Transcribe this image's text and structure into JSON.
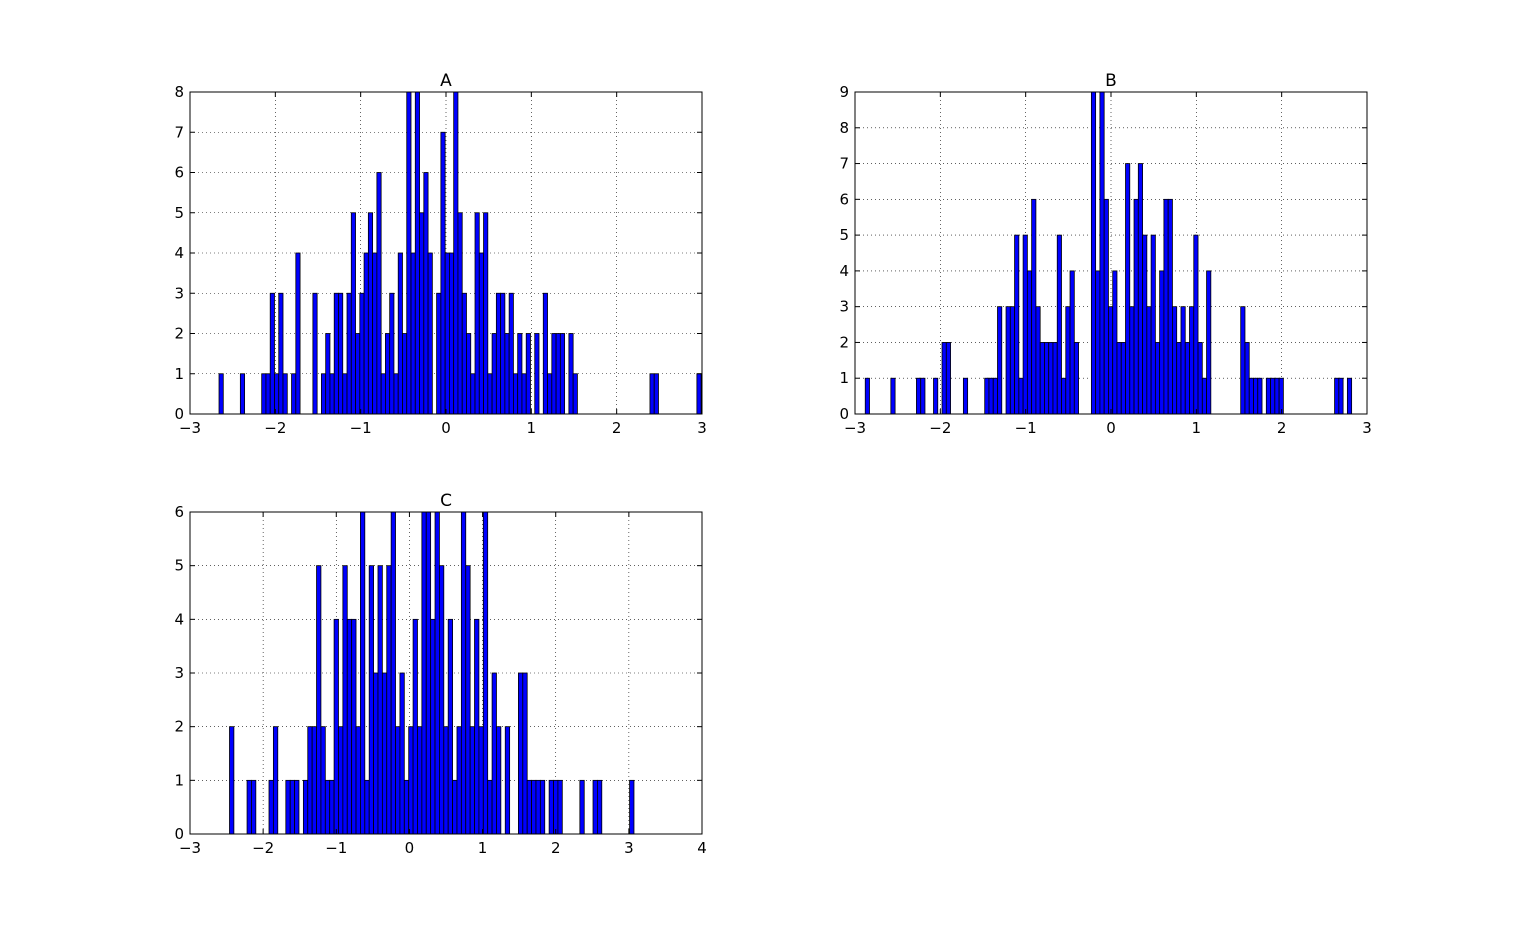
{
  "chart_data": [
    {
      "type": "bar",
      "title": "A",
      "xlim": [
        -3,
        3
      ],
      "ylim": [
        0,
        8
      ],
      "xticks": [
        "−3",
        "−2",
        "−1",
        "0",
        "1",
        "2",
        "3"
      ],
      "yticks": [
        "0",
        "1",
        "2",
        "3",
        "4",
        "5",
        "6",
        "7",
        "8"
      ],
      "grid": true,
      "bar_color": "#0000ff",
      "bins": [
        [
          -2.66,
          1
        ],
        [
          -2.41,
          1
        ],
        [
          -2.16,
          1
        ],
        [
          -2.11,
          1
        ],
        [
          -2.06,
          3
        ],
        [
          -2.01,
          1
        ],
        [
          -1.96,
          3
        ],
        [
          -1.91,
          1
        ],
        [
          -1.81,
          1
        ],
        [
          -1.76,
          4
        ],
        [
          -1.56,
          3
        ],
        [
          -1.46,
          1
        ],
        [
          -1.41,
          2
        ],
        [
          -1.36,
          1
        ],
        [
          -1.31,
          3
        ],
        [
          -1.26,
          3
        ],
        [
          -1.21,
          1
        ],
        [
          -1.16,
          3
        ],
        [
          -1.11,
          5
        ],
        [
          -1.06,
          2
        ],
        [
          -1.01,
          3
        ],
        [
          -0.96,
          4
        ],
        [
          -0.91,
          5
        ],
        [
          -0.86,
          4
        ],
        [
          -0.81,
          6
        ],
        [
          -0.76,
          1
        ],
        [
          -0.71,
          2
        ],
        [
          -0.66,
          3
        ],
        [
          -0.61,
          1
        ],
        [
          -0.56,
          4
        ],
        [
          -0.51,
          2
        ],
        [
          -0.46,
          8
        ],
        [
          -0.41,
          4
        ],
        [
          -0.36,
          8
        ],
        [
          -0.31,
          5
        ],
        [
          -0.26,
          6
        ],
        [
          -0.21,
          4
        ],
        [
          -0.11,
          3
        ],
        [
          -0.06,
          7
        ],
        [
          -0.01,
          4
        ],
        [
          0.04,
          4
        ],
        [
          0.09,
          8
        ],
        [
          0.14,
          5
        ],
        [
          0.19,
          3
        ],
        [
          0.24,
          2
        ],
        [
          0.29,
          1
        ],
        [
          0.34,
          5
        ],
        [
          0.39,
          4
        ],
        [
          0.44,
          5
        ],
        [
          0.49,
          1
        ],
        [
          0.54,
          2
        ],
        [
          0.59,
          3
        ],
        [
          0.64,
          3
        ],
        [
          0.69,
          2
        ],
        [
          0.74,
          3
        ],
        [
          0.79,
          1
        ],
        [
          0.84,
          2
        ],
        [
          0.89,
          1
        ],
        [
          0.94,
          2
        ],
        [
          1.04,
          2
        ],
        [
          1.14,
          3
        ],
        [
          1.19,
          1
        ],
        [
          1.24,
          2
        ],
        [
          1.29,
          2
        ],
        [
          1.34,
          2
        ],
        [
          1.44,
          2
        ],
        [
          1.49,
          1
        ],
        [
          2.39,
          1
        ],
        [
          2.44,
          1
        ],
        [
          2.94,
          1
        ]
      ],
      "bin_width": 0.05
    },
    {
      "type": "bar",
      "title": "B",
      "xlim": [
        -3,
        3
      ],
      "ylim": [
        0,
        9
      ],
      "xticks": [
        "−3",
        "−2",
        "−1",
        "0",
        "1",
        "2",
        "3"
      ],
      "yticks": [
        "0",
        "1",
        "2",
        "3",
        "4",
        "5",
        "6",
        "7",
        "8",
        "9"
      ],
      "grid": true,
      "bar_color": "#0000ff",
      "bins": [
        [
          -2.88,
          1
        ],
        [
          -2.58,
          1
        ],
        [
          -2.28,
          1
        ],
        [
          -2.23,
          1
        ],
        [
          -2.08,
          1
        ],
        [
          -1.98,
          2
        ],
        [
          -1.93,
          2
        ],
        [
          -1.73,
          1
        ],
        [
          -1.48,
          1
        ],
        [
          -1.43,
          1
        ],
        [
          -1.38,
          1
        ],
        [
          -1.33,
          3
        ],
        [
          -1.23,
          3
        ],
        [
          -1.18,
          3
        ],
        [
          -1.13,
          5
        ],
        [
          -1.08,
          1
        ],
        [
          -1.03,
          5
        ],
        [
          -0.98,
          4
        ],
        [
          -0.93,
          6
        ],
        [
          -0.88,
          3
        ],
        [
          -0.83,
          2
        ],
        [
          -0.78,
          2
        ],
        [
          -0.73,
          2
        ],
        [
          -0.68,
          2
        ],
        [
          -0.63,
          5
        ],
        [
          -0.58,
          1
        ],
        [
          -0.53,
          3
        ],
        [
          -0.48,
          4
        ],
        [
          -0.43,
          2
        ],
        [
          -0.23,
          9
        ],
        [
          -0.18,
          4
        ],
        [
          -0.13,
          9
        ],
        [
          -0.08,
          6
        ],
        [
          -0.03,
          3
        ],
        [
          0.02,
          4
        ],
        [
          0.07,
          2
        ],
        [
          0.12,
          2
        ],
        [
          0.17,
          7
        ],
        [
          0.22,
          3
        ],
        [
          0.27,
          6
        ],
        [
          0.32,
          7
        ],
        [
          0.37,
          5
        ],
        [
          0.42,
          3
        ],
        [
          0.47,
          5
        ],
        [
          0.52,
          2
        ],
        [
          0.57,
          4
        ],
        [
          0.62,
          6
        ],
        [
          0.67,
          6
        ],
        [
          0.72,
          3
        ],
        [
          0.77,
          2
        ],
        [
          0.82,
          3
        ],
        [
          0.87,
          2
        ],
        [
          0.92,
          3
        ],
        [
          0.97,
          5
        ],
        [
          1.02,
          2
        ],
        [
          1.07,
          1
        ],
        [
          1.12,
          4
        ],
        [
          1.52,
          3
        ],
        [
          1.57,
          2
        ],
        [
          1.62,
          1
        ],
        [
          1.67,
          1
        ],
        [
          1.72,
          1
        ],
        [
          1.82,
          1
        ],
        [
          1.87,
          1
        ],
        [
          1.92,
          1
        ],
        [
          1.97,
          1
        ],
        [
          2.62,
          1
        ],
        [
          2.67,
          1
        ],
        [
          2.77,
          1
        ]
      ],
      "bin_width": 0.05
    },
    {
      "type": "bar",
      "title": "C",
      "xlim": [
        -3,
        4
      ],
      "ylim": [
        0,
        6
      ],
      "xticks": [
        "−3",
        "−2",
        "−1",
        "0",
        "1",
        "2",
        "3",
        "4"
      ],
      "yticks": [
        "0",
        "1",
        "2",
        "3",
        "4",
        "5",
        "6"
      ],
      "grid": true,
      "bar_color": "#0000ff",
      "bins": [
        [
          -2.46,
          2
        ],
        [
          -2.22,
          1
        ],
        [
          -2.16,
          1
        ],
        [
          -1.92,
          1
        ],
        [
          -1.86,
          2
        ],
        [
          -1.69,
          1
        ],
        [
          -1.63,
          1
        ],
        [
          -1.57,
          1
        ],
        [
          -1.45,
          1
        ],
        [
          -1.39,
          2
        ],
        [
          -1.33,
          2
        ],
        [
          -1.27,
          5
        ],
        [
          -1.21,
          2
        ],
        [
          -1.15,
          1
        ],
        [
          -1.09,
          1
        ],
        [
          -1.03,
          4
        ],
        [
          -0.97,
          2
        ],
        [
          -0.91,
          5
        ],
        [
          -0.85,
          4
        ],
        [
          -0.79,
          4
        ],
        [
          -0.73,
          2
        ],
        [
          -0.67,
          6
        ],
        [
          -0.61,
          1
        ],
        [
          -0.55,
          5
        ],
        [
          -0.49,
          3
        ],
        [
          -0.43,
          5
        ],
        [
          -0.37,
          3
        ],
        [
          -0.31,
          5
        ],
        [
          -0.25,
          6
        ],
        [
          -0.19,
          2
        ],
        [
          -0.13,
          3
        ],
        [
          -0.07,
          1
        ],
        [
          -0.01,
          2
        ],
        [
          0.05,
          4
        ],
        [
          0.11,
          2
        ],
        [
          0.17,
          6
        ],
        [
          0.23,
          6
        ],
        [
          0.29,
          4
        ],
        [
          0.35,
          6
        ],
        [
          0.41,
          5
        ],
        [
          0.47,
          2
        ],
        [
          0.53,
          4
        ],
        [
          0.59,
          1
        ],
        [
          0.65,
          2
        ],
        [
          0.71,
          6
        ],
        [
          0.77,
          5
        ],
        [
          0.83,
          2
        ],
        [
          0.89,
          4
        ],
        [
          0.95,
          2
        ],
        [
          1.01,
          6
        ],
        [
          1.07,
          1
        ],
        [
          1.13,
          3
        ],
        [
          1.19,
          2
        ],
        [
          1.31,
          2
        ],
        [
          1.49,
          3
        ],
        [
          1.55,
          3
        ],
        [
          1.61,
          1
        ],
        [
          1.67,
          1
        ],
        [
          1.73,
          1
        ],
        [
          1.79,
          1
        ],
        [
          1.91,
          1
        ],
        [
          1.97,
          1
        ],
        [
          2.03,
          1
        ],
        [
          2.33,
          1
        ],
        [
          2.51,
          1
        ],
        [
          2.57,
          1
        ],
        [
          3.01,
          1
        ]
      ],
      "bin_width": 0.06
    }
  ]
}
